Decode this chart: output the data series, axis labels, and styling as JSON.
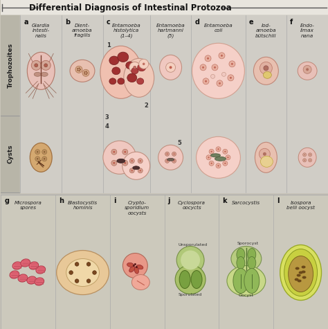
{
  "title": "Differential Diagnosis of Intestinal Protozoa",
  "bg_color": "#c8c4b8",
  "top_section_bg": "#c0bdb0",
  "cell_bg": "#d0cec8",
  "bot_section_bg": "#c8c5b8",
  "title_color": "#111111",
  "row_label_color": "#222222",
  "top_col_letters": [
    "a",
    "b",
    "c",
    "",
    "d",
    "e",
    "f"
  ],
  "top_col_names": [
    "Giardia\nintesti-\nnalis",
    "Dient-\namoeba\nfragilis",
    "Entamoeba\nhistolytica\n(1–4)",
    "Entamoeba\nhartmanni\n(5)",
    "Entamoeba\ncoli",
    "Iod-\namoeba\nbütschlii",
    "Endo-\nlimax\nnana"
  ],
  "row_labels": [
    "Trophozoites",
    "Cysts"
  ],
  "bot_col_letters": [
    "g",
    "h",
    "i",
    "j",
    "k",
    "l"
  ],
  "bot_col_names": [
    "Microspora\nspores",
    "Blastocystis\nhominis",
    "Crypto-\nsporidium\noocysts",
    "Cyclospora\noocycts",
    "Sarcocystis",
    "Isospora\nbelli oocyst"
  ],
  "pink_light": "#f0c8c0",
  "pink_med": "#e8a898",
  "pink_dark": "#c87060",
  "pink_body": "#f0c8c0",
  "red_dark": "#8B2020",
  "tan": "#d4b080",
  "tan_light": "#e8cca0",
  "mauve": "#c89090",
  "green_light": "#b8cc80",
  "green_med": "#88aa50",
  "green_dark": "#506828",
  "yellow_green": "#d8e070",
  "olive_light": "#c8d870",
  "brown_dark": "#6a3818"
}
